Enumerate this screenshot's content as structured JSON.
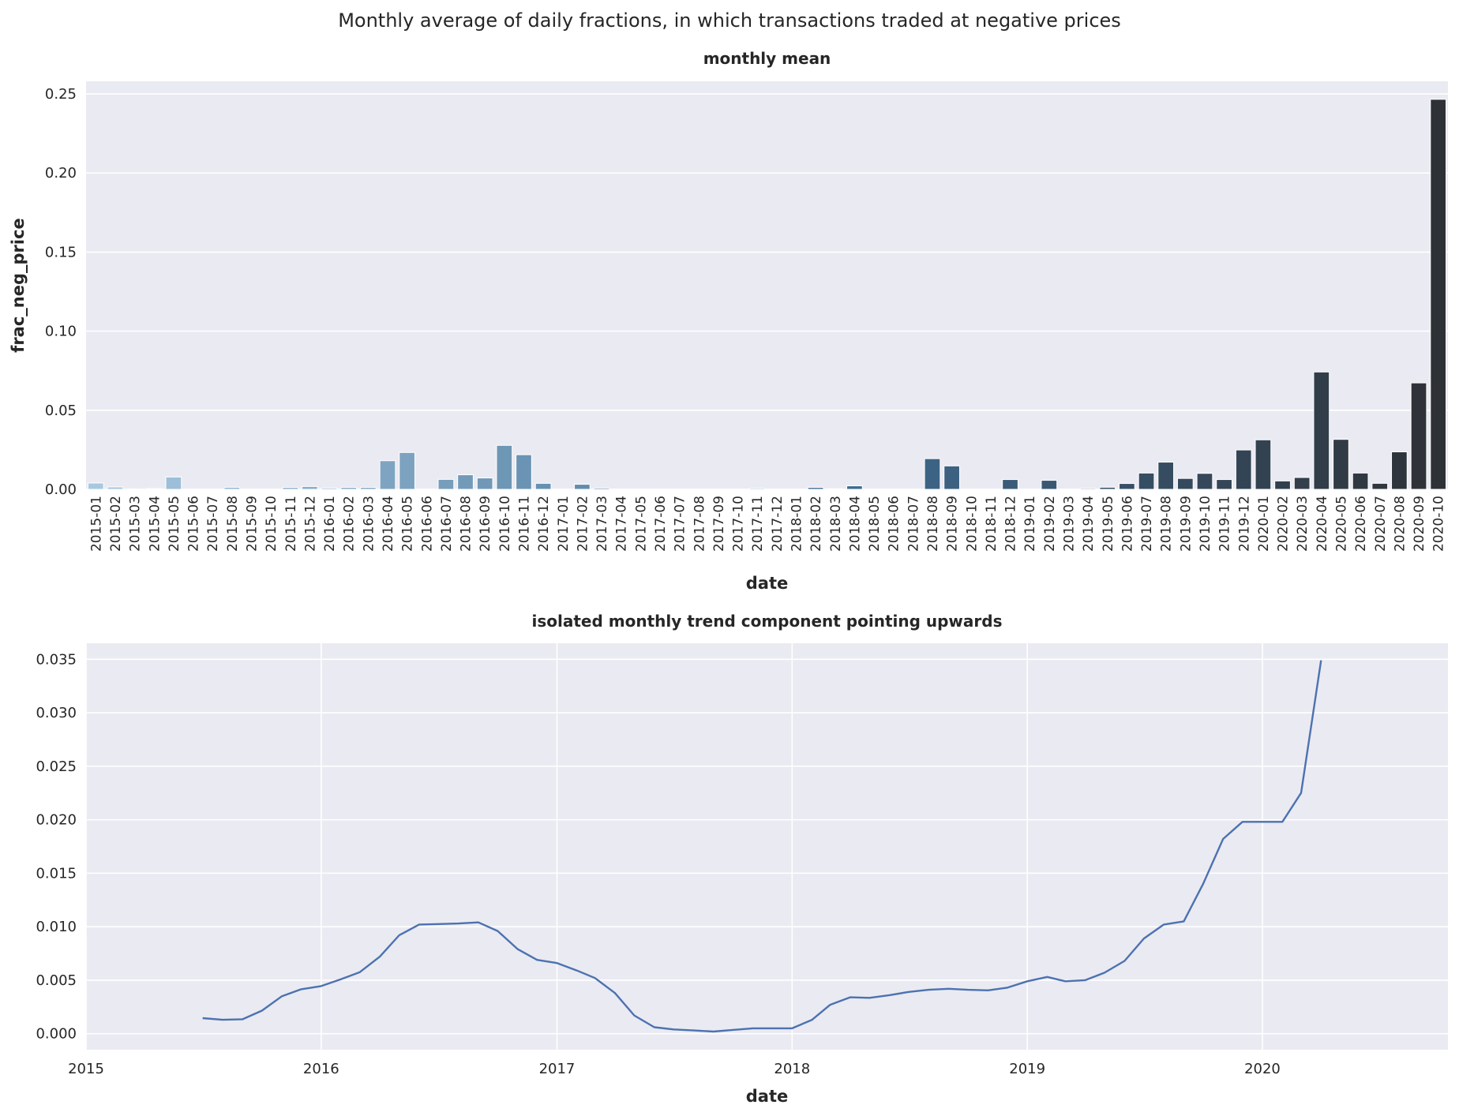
{
  "figure": {
    "suptitle": "Monthly average of daily fractions, in which transactions traded at negative prices",
    "background": "#ffffff",
    "axes_background": "#eaeaf2",
    "grid_color": "#ffffff"
  },
  "chart_data": [
    {
      "type": "bar",
      "title": "monthly mean",
      "xlabel": "date",
      "ylabel": "frac_neg_price",
      "ylim": [
        0,
        0.258
      ],
      "yticks": [
        0.0,
        0.05,
        0.1,
        0.15,
        0.2,
        0.25
      ],
      "ytick_labels": [
        "0.00",
        "0.05",
        "0.10",
        "0.15",
        "0.20",
        "0.25"
      ],
      "grid": "horizontal",
      "color_map": "light-blue-to-dark-gray gradient",
      "color_start": "#a8c8e0",
      "color_mid": "#3f6d93",
      "color_end": "#2e3136",
      "categories": [
        "2015-01",
        "2015-02",
        "2015-03",
        "2015-04",
        "2015-05",
        "2015-06",
        "2015-07",
        "2015-08",
        "2015-09",
        "2015-10",
        "2015-11",
        "2015-12",
        "2016-01",
        "2016-02",
        "2016-03",
        "2016-04",
        "2016-05",
        "2016-06",
        "2016-07",
        "2016-08",
        "2016-09",
        "2016-10",
        "2016-11",
        "2016-12",
        "2017-01",
        "2017-02",
        "2017-03",
        "2017-04",
        "2017-05",
        "2017-06",
        "2017-07",
        "2017-08",
        "2017-09",
        "2017-10",
        "2017-11",
        "2017-12",
        "2018-01",
        "2018-02",
        "2018-03",
        "2018-04",
        "2018-05",
        "2018-06",
        "2018-07",
        "2018-08",
        "2018-09",
        "2018-10",
        "2018-11",
        "2018-12",
        "2019-01",
        "2019-02",
        "2019-03",
        "2019-04",
        "2019-05",
        "2019-06",
        "2019-07",
        "2019-08",
        "2019-09",
        "2019-10",
        "2019-11",
        "2019-12",
        "2020-01",
        "2020-02",
        "2020-03",
        "2020-04",
        "2020-05",
        "2020-06",
        "2020-07",
        "2020-08",
        "2020-09",
        "2020-10"
      ],
      "values": [
        0.004,
        0.0015,
        0.0003,
        0.0005,
        0.0078,
        0.0002,
        0.0002,
        0.0013,
        0.0002,
        0.0002,
        0.0012,
        0.0018,
        0.0008,
        0.0012,
        0.0012,
        0.0181,
        0.0233,
        0.0002,
        0.0063,
        0.0092,
        0.0072,
        0.0278,
        0.0219,
        0.0038,
        0.0002,
        0.0032,
        0.0008,
        0.0002,
        0.0002,
        0.0002,
        0.0002,
        0.0002,
        0.0002,
        0.0002,
        0.0006,
        0.0002,
        0.0002,
        0.0012,
        0.0004,
        0.0022,
        0.0002,
        0.0002,
        0.0002,
        0.0194,
        0.0148,
        0.0002,
        0.0002,
        0.0062,
        0.0002,
        0.0057,
        0.0002,
        0.0006,
        0.0013,
        0.0037,
        0.0103,
        0.0172,
        0.0069,
        0.0101,
        0.0062,
        0.0249,
        0.0313,
        0.0053,
        0.0075,
        0.0742,
        0.0316,
        0.0103,
        0.0038,
        0.0237,
        0.0673,
        0.2466
      ]
    },
    {
      "type": "line",
      "title": "isolated monthly trend component pointing upwards",
      "xlabel": "date",
      "ylabel": "",
      "xlim": [
        "2015-01-01",
        "2020-10-15"
      ],
      "xticks": [
        "2015-01-01",
        "2016-01-01",
        "2017-01-01",
        "2018-01-01",
        "2019-01-01",
        "2020-01-01"
      ],
      "xtick_labels": [
        "2015",
        "2016",
        "2017",
        "2018",
        "2019",
        "2020"
      ],
      "ylim": [
        -0.0015,
        0.0365
      ],
      "yticks": [
        0.0,
        0.005,
        0.01,
        0.015,
        0.02,
        0.025,
        0.03,
        0.035
      ],
      "ytick_labels": [
        "0.000",
        "0.005",
        "0.010",
        "0.015",
        "0.020",
        "0.025",
        "0.030",
        "0.035"
      ],
      "grid": "both",
      "line_color": "#4c72b0",
      "series": [
        {
          "x": [
            "2015-07-01",
            "2015-08-01",
            "2015-09-01",
            "2015-10-01",
            "2015-11-01",
            "2015-12-01",
            "2016-01-01",
            "2016-02-01",
            "2016-03-01",
            "2016-04-01",
            "2016-05-01",
            "2016-06-01",
            "2016-07-01",
            "2016-08-01",
            "2016-09-01",
            "2016-10-01",
            "2016-11-01",
            "2016-12-01",
            "2017-01-01",
            "2017-02-01",
            "2017-03-01",
            "2017-04-01",
            "2017-05-01",
            "2017-06-01",
            "2017-07-01",
            "2017-08-01",
            "2017-09-01",
            "2017-10-01",
            "2017-11-01",
            "2017-12-01",
            "2018-01-01",
            "2018-02-01",
            "2018-03-01",
            "2018-04-01",
            "2018-05-01",
            "2018-06-01",
            "2018-07-01",
            "2018-08-01",
            "2018-09-01",
            "2018-10-01",
            "2018-11-01",
            "2018-12-01",
            "2019-01-01",
            "2019-02-01",
            "2019-03-01",
            "2019-04-01",
            "2019-05-01",
            "2019-06-01",
            "2019-07-01",
            "2019-08-01",
            "2019-09-01",
            "2019-10-01",
            "2019-11-01",
            "2019-12-01",
            "2020-01-01",
            "2020-02-01",
            "2020-03-01",
            "2020-04-01"
          ],
          "y": [
            0.00145,
            0.0013,
            0.00135,
            0.00215,
            0.0035,
            0.00415,
            0.00445,
            0.0051,
            0.00575,
            0.0072,
            0.0092,
            0.0102,
            0.01025,
            0.0103,
            0.0104,
            0.0096,
            0.0079,
            0.0069,
            0.0066,
            0.0059,
            0.0052,
            0.0038,
            0.0017,
            0.0006,
            0.0004,
            0.0003,
            0.0002,
            0.00035,
            0.0005,
            0.0005,
            0.0005,
            0.0013,
            0.0027,
            0.0034,
            0.00335,
            0.0036,
            0.0039,
            0.0041,
            0.0042,
            0.0041,
            0.00405,
            0.0043,
            0.0049,
            0.0053,
            0.0049,
            0.005,
            0.0057,
            0.0068,
            0.0089,
            0.0102,
            0.0105,
            0.014,
            0.0182,
            0.0198,
            0.0198,
            0.0198,
            0.0225,
            0.0349
          ]
        }
      ]
    }
  ]
}
